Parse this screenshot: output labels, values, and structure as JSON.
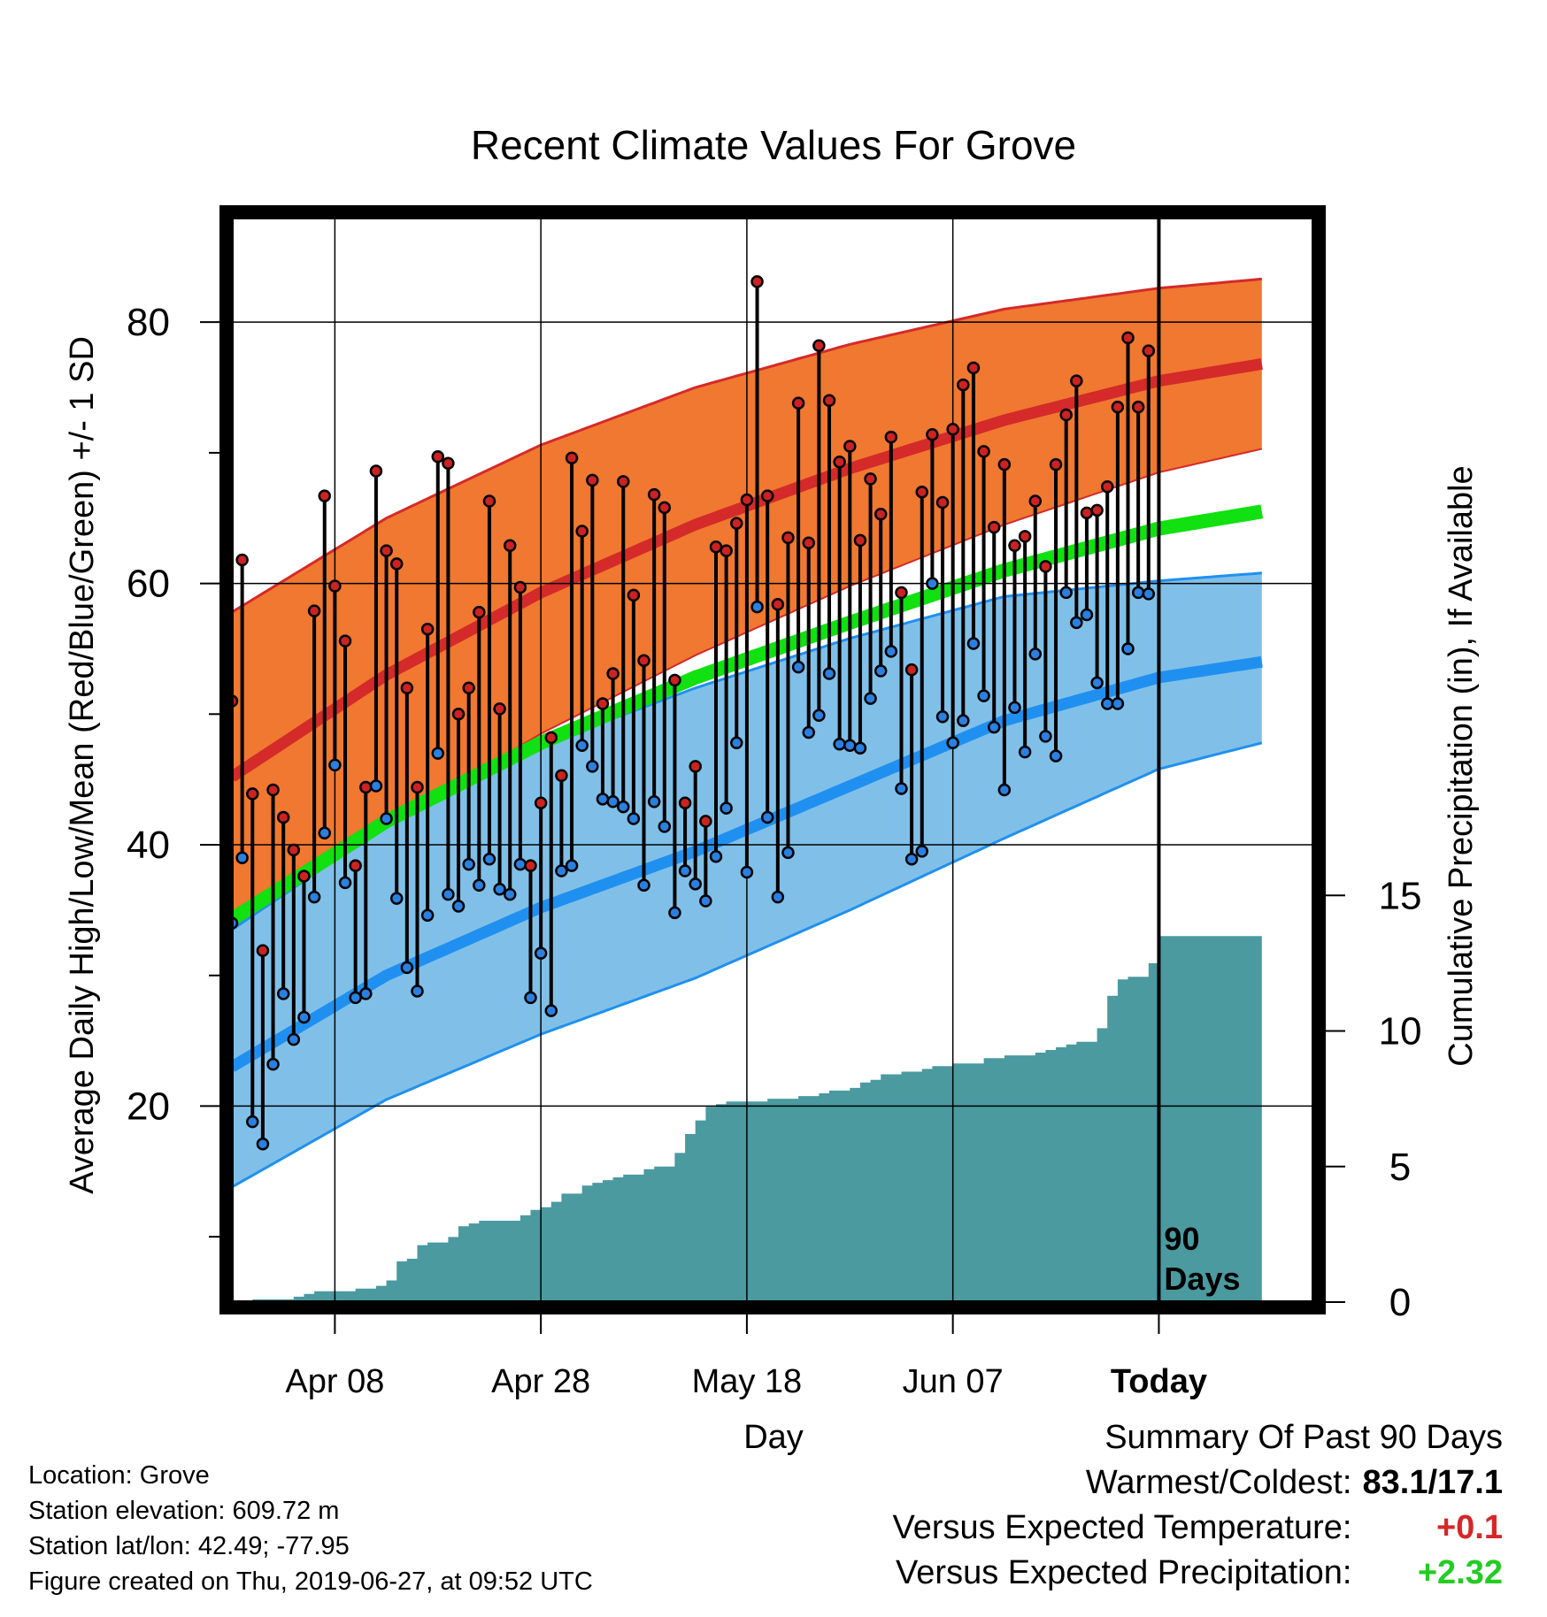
{
  "chart_data": {
    "type": "line",
    "title": "Recent Climate Values For Grove",
    "xlabel": "Day",
    "ylabel": "Average Daily High/Low/Mean (Red/Blue/Green) +/- 1 SD",
    "ylabel_right": "Cumulative Precipitation (in), If Available",
    "x_start": "Mar 29",
    "x_days": 90,
    "xlim": [
      0,
      105
    ],
    "ylim": [
      5,
      88
    ],
    "ylim_right": [
      0,
      40
    ],
    "x_ticks": [
      {
        "day": 10,
        "label": "Apr 08"
      },
      {
        "day": 30,
        "label": "Apr 28"
      },
      {
        "day": 50,
        "label": "May 18"
      },
      {
        "day": 70,
        "label": "Jun 07"
      },
      {
        "day": 90,
        "label": "Today"
      }
    ],
    "y_ticks": [
      20,
      40,
      60,
      80
    ],
    "y_ticks_right": [
      0,
      5,
      10,
      15
    ],
    "today_label": "90 Days",
    "grid": true,
    "normals": {
      "day": [
        0,
        15,
        30,
        45,
        60,
        75,
        90,
        100
      ],
      "high_mean": [
        45.2,
        53.0,
        59.3,
        64.5,
        68.8,
        72.5,
        75.5,
        76.8
      ],
      "high_plus_sd": [
        57.8,
        65.0,
        70.6,
        75.0,
        78.3,
        81.0,
        82.6,
        83.3
      ],
      "high_minus_sd": [
        33.5,
        41.5,
        48.5,
        54.5,
        59.8,
        64.5,
        68.5,
        70.3
      ],
      "low_mean": [
        23.0,
        30.0,
        35.2,
        39.5,
        44.5,
        49.5,
        52.8,
        54.0
      ],
      "low_plus_sd": [
        33.5,
        41.5,
        47.6,
        52.0,
        55.8,
        59.0,
        60.2,
        60.8
      ],
      "low_minus_sd": [
        13.8,
        20.5,
        25.5,
        29.8,
        35.0,
        40.5,
        45.8,
        47.8
      ],
      "mean": [
        34.3,
        41.8,
        47.8,
        52.8,
        57.0,
        61.0,
        64.2,
        65.5
      ]
    },
    "daily_highs": [
      51.0,
      61.8,
      43.9,
      31.9,
      44.2,
      42.1,
      39.6,
      37.6,
      57.9,
      66.7,
      59.8,
      55.6,
      38.4,
      44.4,
      68.6,
      62.5,
      61.5,
      52.0,
      44.4,
      56.5,
      69.7,
      69.2,
      50.0,
      52.0,
      57.8,
      66.3,
      50.4,
      62.9,
      59.7,
      38.4,
      43.2,
      48.2,
      45.3,
      69.6,
      64.0,
      67.9,
      50.8,
      53.1,
      67.8,
      59.1,
      54.1,
      66.8,
      65.8,
      52.6,
      43.2,
      46.0,
      41.8,
      62.8,
      62.5,
      64.6,
      66.4,
      83.1,
      66.7,
      58.4,
      63.5,
      73.8,
      63.1,
      78.2,
      74.0,
      69.3,
      70.5,
      63.3,
      68.0,
      65.3,
      71.2,
      59.3,
      53.4,
      67.0,
      71.4,
      66.2,
      71.8,
      75.2,
      76.5,
      70.1,
      64.3,
      69.1,
      62.9,
      63.6,
      66.3,
      61.3,
      69.1,
      72.9,
      75.5,
      65.4,
      65.6,
      67.4,
      73.5,
      78.8,
      73.5,
      77.8
    ],
    "daily_lows": [
      34.0,
      39.0,
      18.8,
      17.1,
      23.2,
      28.6,
      25.1,
      26.8,
      36.0,
      40.9,
      46.1,
      37.1,
      28.3,
      28.6,
      44.5,
      42.0,
      35.9,
      30.6,
      28.8,
      34.6,
      47.0,
      36.2,
      35.3,
      38.5,
      36.9,
      38.9,
      36.6,
      36.2,
      38.5,
      28.3,
      31.7,
      27.3,
      38.0,
      38.4,
      47.6,
      46.0,
      43.5,
      43.3,
      42.9,
      42.0,
      36.9,
      43.3,
      41.4,
      34.8,
      38.0,
      37.0,
      35.7,
      39.1,
      42.8,
      47.8,
      37.9,
      58.2,
      42.1,
      36.0,
      39.4,
      53.6,
      48.6,
      49.9,
      53.1,
      47.7,
      47.6,
      47.4,
      51.2,
      53.3,
      54.8,
      44.3,
      38.9,
      39.5,
      60.0,
      49.8,
      47.8,
      49.5,
      55.4,
      51.4,
      49.0,
      44.2,
      50.5,
      47.1,
      54.6,
      48.3,
      46.8,
      59.3,
      57.0,
      57.6,
      52.4,
      50.8,
      50.8,
      55.0,
      59.3,
      59.2
    ],
    "precip_days": [
      0,
      2,
      3,
      4,
      5,
      6,
      7,
      8,
      9,
      10,
      11,
      12,
      13,
      14,
      15,
      16,
      17,
      18,
      19,
      20,
      21,
      22,
      23,
      24,
      25,
      26,
      27,
      28,
      29,
      30,
      31,
      32,
      33,
      34,
      35,
      36,
      37,
      38,
      39,
      40,
      41,
      42,
      43,
      44,
      45,
      46,
      47,
      48,
      49,
      50,
      51,
      52,
      53,
      54,
      55,
      56,
      57,
      58,
      59,
      60,
      61,
      62,
      63,
      64,
      65,
      66,
      67,
      68,
      69,
      70,
      71,
      72,
      73,
      74,
      75,
      76,
      77,
      78,
      79,
      80,
      81,
      82,
      83,
      84,
      85,
      86,
      87,
      88,
      89,
      90,
      100
    ],
    "precip_cum": [
      0.0,
      0.1,
      0.1,
      0.1,
      0.1,
      0.2,
      0.3,
      0.4,
      0.4,
      0.4,
      0.4,
      0.5,
      0.5,
      0.6,
      0.8,
      1.5,
      1.6,
      2.1,
      2.2,
      2.2,
      2.4,
      2.8,
      2.9,
      3.0,
      3.0,
      3.0,
      3.0,
      3.2,
      3.4,
      3.5,
      3.7,
      4.0,
      4.0,
      4.3,
      4.4,
      4.5,
      4.6,
      4.7,
      4.7,
      4.9,
      5.0,
      5.0,
      5.5,
      6.2,
      6.7,
      7.2,
      7.3,
      7.4,
      7.4,
      7.4,
      7.4,
      7.5,
      7.5,
      7.5,
      7.6,
      7.6,
      7.7,
      7.8,
      7.8,
      7.9,
      8.1,
      8.2,
      8.4,
      8.4,
      8.5,
      8.5,
      8.6,
      8.7,
      8.7,
      8.8,
      8.8,
      8.8,
      9.0,
      9.0,
      9.1,
      9.1,
      9.1,
      9.2,
      9.3,
      9.4,
      9.5,
      9.6,
      9.6,
      10.1,
      11.3,
      11.9,
      12.0,
      12.0,
      12.5,
      13.5,
      13.5
    ]
  },
  "footer": {
    "location": "Location: Grove",
    "elevation": "Station elevation: 609.72 m",
    "latlon": "Station lat/lon: 42.49; -77.95",
    "created": "Figure created on Thu, 2019-06-27, at 09:52 UTC"
  },
  "summary": {
    "heading": "Summary Of Past 90 Days",
    "warmest_label": "Warmest/Coldest:",
    "warmest_value": "83.1/17.1",
    "temp_label": "Versus Expected Temperature:",
    "temp_value": "+0.1",
    "precip_label": "Versus Expected Precipitation:",
    "precip_value": "+2.32"
  },
  "colors": {
    "high_band": "#f07830",
    "high_mean": "#d42a2a",
    "low_band": "#80c0e8",
    "low_mean": "#2090f0",
    "mean_line": "#11e011",
    "precip_fill": "#4a9aa0",
    "high_marker": "#cc2222",
    "low_marker": "#2a80e0"
  }
}
